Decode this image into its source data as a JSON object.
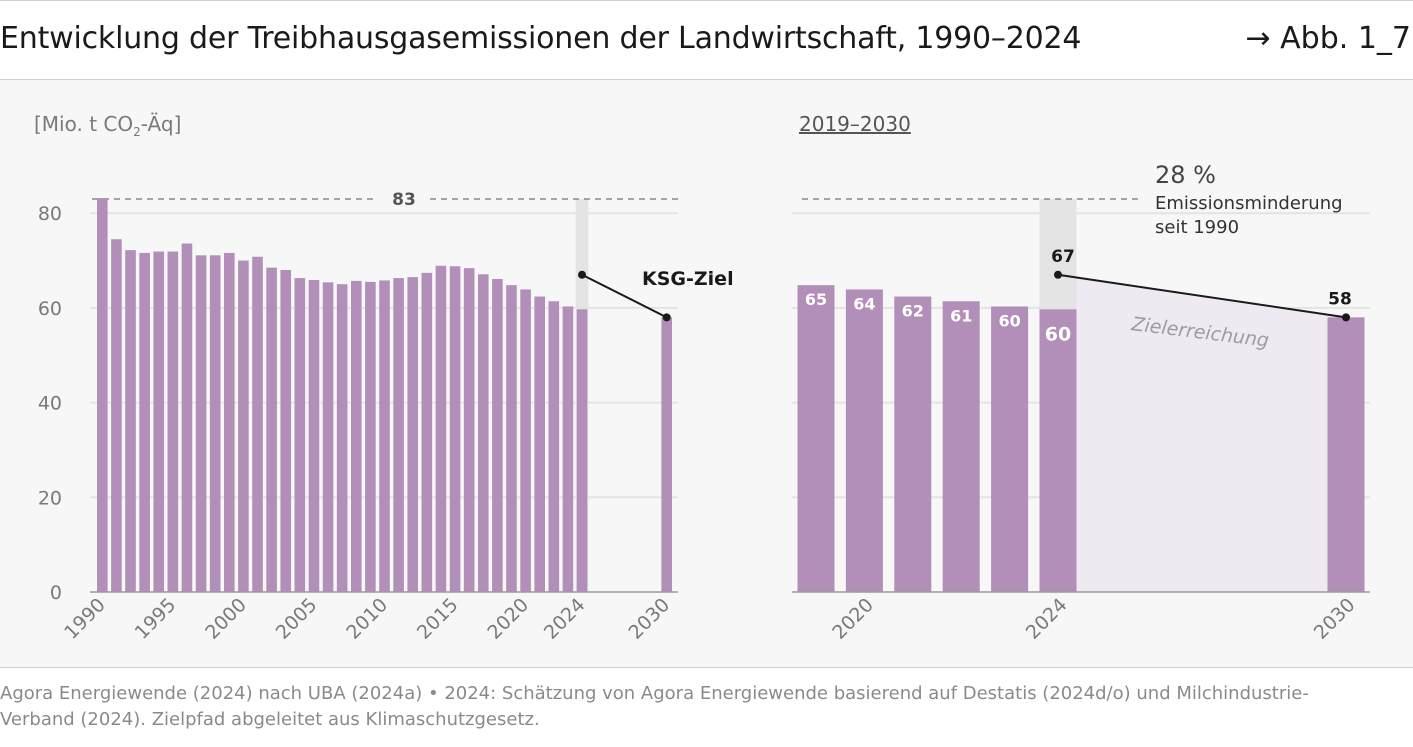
{
  "header": {
    "title": "Entwicklung der Treibhausgasemissionen der Landwirtschaft, 1990–2024",
    "figure_ref": "→ Abb. 1_7"
  },
  "chart_data": [
    {
      "type": "bar",
      "unit_label": {
        "prefix": "[Mio. t CO",
        "sub": "2",
        "suffix": "-Äq]"
      },
      "ylim": [
        0,
        83
      ],
      "yticks": [
        0,
        20,
        40,
        60,
        80
      ],
      "grid": true,
      "x": [
        1990,
        1991,
        1992,
        1993,
        1994,
        1995,
        1996,
        1997,
        1998,
        1999,
        2000,
        2001,
        2002,
        2003,
        2004,
        2005,
        2006,
        2007,
        2008,
        2009,
        2010,
        2011,
        2012,
        2013,
        2014,
        2015,
        2016,
        2017,
        2018,
        2019,
        2020,
        2021,
        2022,
        2023,
        2024,
        2030
      ],
      "values": [
        83.2,
        74.5,
        72.2,
        71.6,
        71.9,
        71.9,
        73.6,
        71.1,
        71.1,
        71.6,
        70.0,
        70.8,
        68.5,
        68.0,
        66.3,
        65.9,
        65.4,
        65.0,
        65.7,
        65.5,
        65.8,
        66.3,
        66.5,
        67.4,
        68.9,
        68.8,
        68.4,
        67.1,
        66.1,
        64.8,
        63.9,
        62.4,
        61.4,
        60.3,
        59.7,
        58.0
      ],
      "xticks": [
        "1990",
        "1995",
        "2000",
        "2005",
        "2010",
        "2015",
        "2020",
        "2024",
        "2030"
      ],
      "reference_line": {
        "value": 83,
        "label": "83"
      },
      "target_path": {
        "label": "KSG-Ziel",
        "points": [
          [
            2024,
            67
          ],
          [
            2030,
            58
          ]
        ]
      }
    },
    {
      "type": "bar",
      "subtitle": "2019–2030",
      "ylim": [
        0,
        83
      ],
      "grid": true,
      "x": [
        2019,
        2020,
        2021,
        2022,
        2023,
        2024,
        2030
      ],
      "values": [
        64.8,
        63.9,
        62.4,
        61.4,
        60.3,
        59.7,
        58.0
      ],
      "data_labels": [
        "65",
        "64",
        "62",
        "61",
        "60",
        "60",
        "58"
      ],
      "xticks": [
        "2020",
        "2024",
        "2030"
      ],
      "reference_line": {
        "value": 83
      },
      "reduction_annotation": {
        "value": "28 %",
        "line1": "Emissionsminderung",
        "line2": "seit 1990"
      },
      "target_path": {
        "points": [
          [
            2024,
            67
          ],
          [
            2030,
            58
          ]
        ],
        "labels": [
          "67",
          "58"
        ]
      },
      "target_area_label": "Zielerreichung"
    }
  ],
  "colors": {
    "bar": "#b18fb8",
    "target_area": "#efe9f1",
    "highlight_2024": "#e4e4e4",
    "grid": "#e4e4e4",
    "axis_text": "#7a7a7a",
    "ref_line": "#8a8a8a",
    "target_line": "#1a1a1a",
    "bar_label": "#ffffff"
  },
  "footer": {
    "line1": "Agora Energiewende (2024) nach UBA (2024a) • 2024: Schätzung von Agora Energiewende basierend auf Destatis (2024d/o) und Milchindustrie-",
    "line2": "Verband (2024). Zielpfad abgeleitet aus Klimaschutzgesetz."
  }
}
